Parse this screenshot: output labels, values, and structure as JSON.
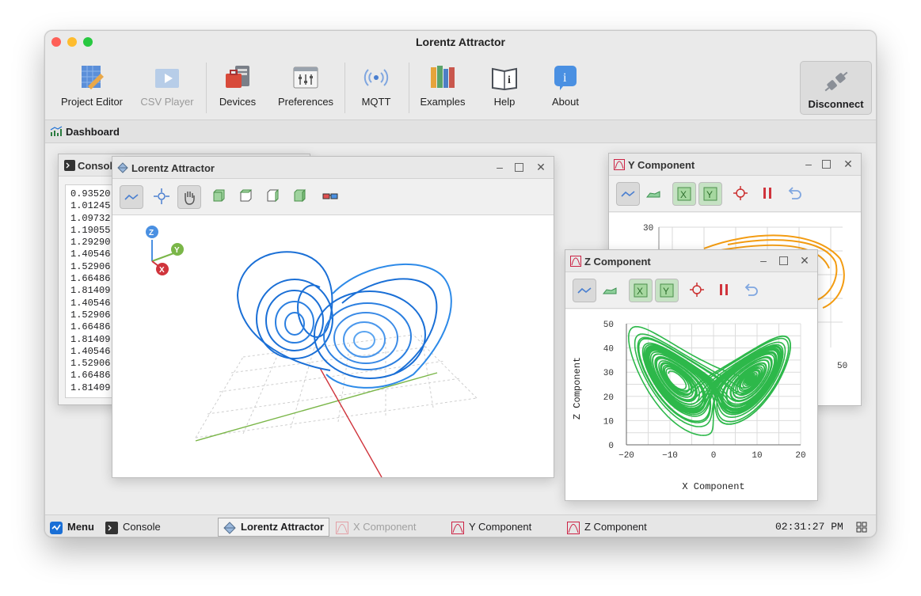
{
  "window": {
    "title": "Lorentz Attractor"
  },
  "toolbar": {
    "items": [
      {
        "label": "Project Editor",
        "icon": "project-editor-icon",
        "enabled": true
      },
      {
        "label": "CSV Player",
        "icon": "csv-player-icon",
        "enabled": false
      },
      {
        "label": "Devices",
        "icon": "devices-icon",
        "enabled": true
      },
      {
        "label": "Preferences",
        "icon": "preferences-icon",
        "enabled": true
      },
      {
        "label": "MQTT",
        "icon": "mqtt-icon",
        "enabled": true
      },
      {
        "label": "Examples",
        "icon": "examples-icon",
        "enabled": true
      },
      {
        "label": "Help",
        "icon": "help-icon",
        "enabled": true
      },
      {
        "label": "About",
        "icon": "about-icon",
        "enabled": true
      }
    ],
    "disconnect_label": "Disconnect"
  },
  "dashboard": {
    "title": "Dashboard"
  },
  "console": {
    "title": "Console",
    "lines": [
      "0.93520",
      "1.01245",
      "1.09732",
      "1.19055",
      "1.29290",
      "1.40546",
      "1.52906",
      "1.66486",
      "1.81409",
      "1.40546",
      "1.52906",
      "1.66486",
      "1.81409",
      "1.40546",
      "1.52906",
      "1.66486",
      "1.81409"
    ]
  },
  "lorentz_window": {
    "title": "Lorentz Attractor",
    "axis_labels": {
      "z": "Z",
      "y": "Y",
      "x": "X"
    }
  },
  "y_window": {
    "title": "Y Component",
    "ticks": {
      "y_top": "30",
      "x_right": "50"
    }
  },
  "z_window": {
    "title": "Z Component"
  },
  "chart_data": {
    "type": "line",
    "title": "",
    "xlabel": "X Component",
    "ylabel": "Z Component",
    "xlim": [
      -20,
      20
    ],
    "ylim": [
      0,
      50
    ],
    "x_ticks": [
      "−20",
      "−10",
      "0",
      "10",
      "20"
    ],
    "y_ticks": [
      "0",
      "10",
      "20",
      "30",
      "40",
      "50"
    ],
    "grid": true,
    "color": "#2db84a"
  },
  "taskbar": {
    "menu_label": "Menu",
    "items": [
      {
        "label": "Console",
        "state": "normal"
      },
      {
        "label": "Lorentz Attractor",
        "state": "active"
      },
      {
        "label": "X Component",
        "state": "disabled"
      },
      {
        "label": "Y Component",
        "state": "normal"
      },
      {
        "label": "Z Component",
        "state": "normal"
      }
    ],
    "clock": "02:31:27 PM"
  },
  "colors": {
    "accent": "#1a6fd6",
    "orange": "#f39c12",
    "green": "#2db84a",
    "red": "#d0343c"
  }
}
